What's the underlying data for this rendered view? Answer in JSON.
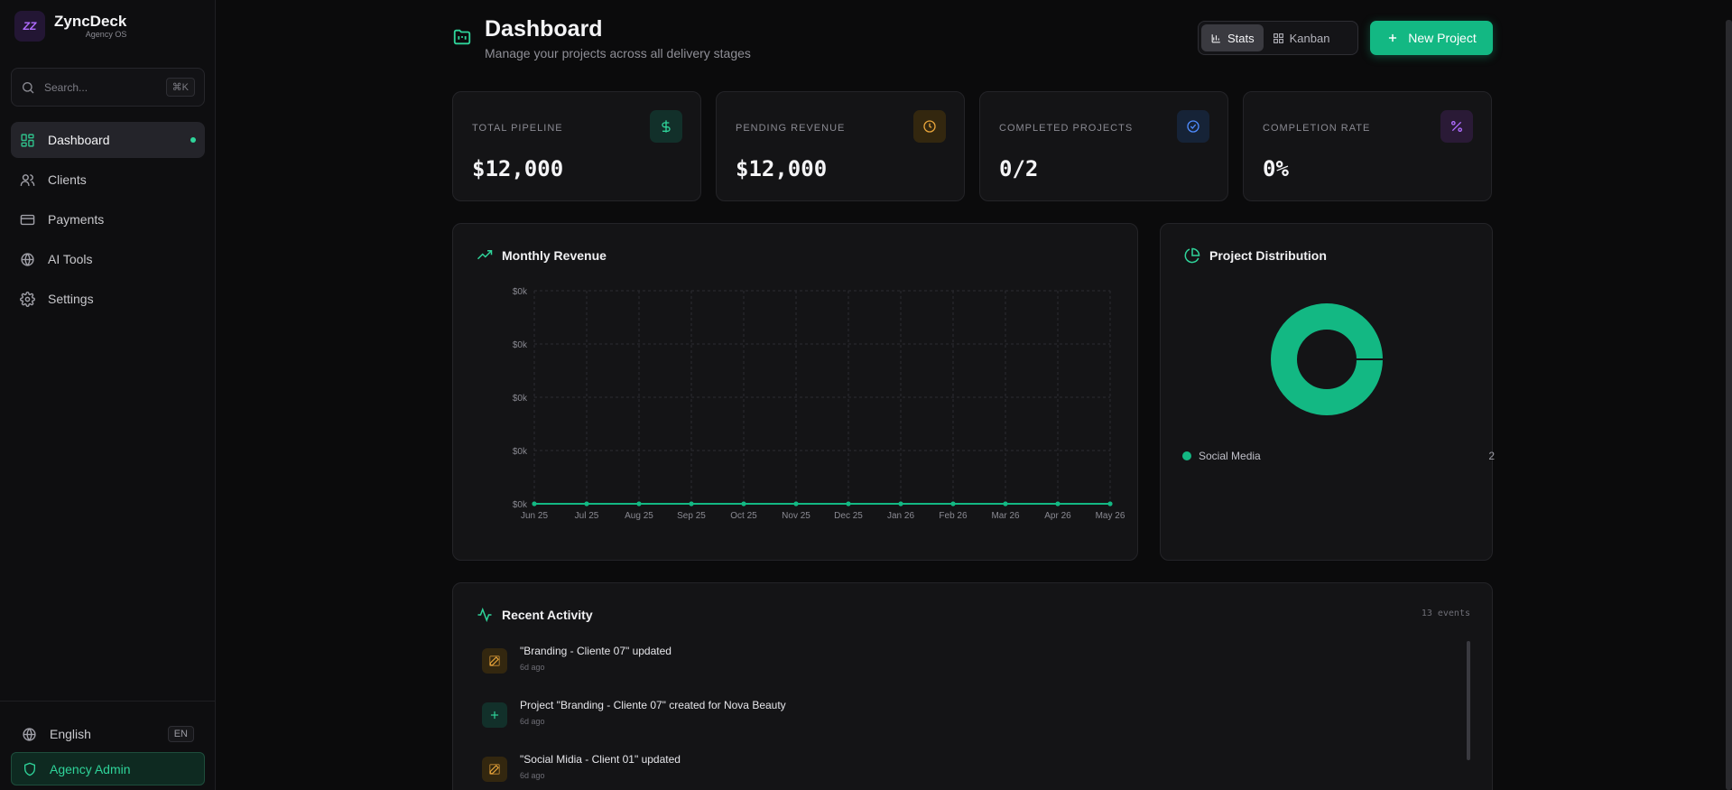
{
  "brand": {
    "name": "ZyncDeck",
    "subtitle": "Agency OS",
    "logo_text": "ZZ"
  },
  "search": {
    "placeholder": "Search...",
    "shortcut": "⌘K"
  },
  "nav": [
    {
      "label": "Dashboard",
      "icon": "dashboard-icon",
      "active": true
    },
    {
      "label": "Clients",
      "icon": "users-icon"
    },
    {
      "label": "Payments",
      "icon": "credit-card-icon"
    },
    {
      "label": "AI Tools",
      "icon": "globe-icon"
    },
    {
      "label": "Settings",
      "icon": "gear-icon"
    }
  ],
  "footer": {
    "language": "English",
    "language_code": "EN",
    "role": "Agency Admin"
  },
  "header": {
    "title": "Dashboard",
    "subtitle": "Manage your projects across all delivery stages"
  },
  "view_toggle": {
    "stats": "Stats",
    "kanban": "Kanban",
    "selected": "Stats"
  },
  "new_project": "New Project",
  "stats": [
    {
      "label": "TOTAL PIPELINE",
      "value": "$12,000",
      "icon": "dollar-icon",
      "color": "#2fd49a"
    },
    {
      "label": "PENDING REVENUE",
      "value": "$12,000",
      "icon": "clock-icon",
      "color": "#e7a43a"
    },
    {
      "label": "COMPLETED PROJECTS",
      "value": "0/2",
      "icon": "check-circle-icon",
      "color": "#4f8cff"
    },
    {
      "label": "COMPLETION RATE",
      "value": "0%",
      "icon": "percent-icon",
      "color": "#b06cff"
    }
  ],
  "revenue": {
    "title": "Monthly Revenue",
    "chart_data": {
      "type": "line",
      "title": "Monthly Revenue",
      "categories": [
        "Jun 25",
        "Jul 25",
        "Aug 25",
        "Sep 25",
        "Oct 25",
        "Nov 25",
        "Dec 25",
        "Jan 26",
        "Feb 26",
        "Mar 26",
        "Apr 26",
        "May 26"
      ],
      "series": [
        {
          "values": [
            0,
            0,
            0,
            0,
            0,
            0,
            0,
            0,
            0,
            0,
            0,
            0
          ],
          "color": "#13b883"
        }
      ],
      "y_ticks": [
        "$0k",
        "$0k",
        "$0k",
        "$0k",
        "$0k"
      ],
      "grid": true
    }
  },
  "distribution": {
    "title": "Project Distribution",
    "chart_data": {
      "type": "pie",
      "donut": true,
      "slices": [
        {
          "label": "Social Media",
          "value": 2,
          "color": "#13b883"
        }
      ]
    },
    "legend": [
      {
        "label": "Social Media",
        "count": "2"
      }
    ]
  },
  "activity": {
    "title": "Recent Activity",
    "count": "13 events",
    "items": [
      {
        "text": "\"Branding - Cliente 07\" updated",
        "time": "6d ago",
        "icon": "edit-icon",
        "color": "#e7a43a"
      },
      {
        "text": "Project \"Branding - Cliente 07\" created for Nova Beauty",
        "time": "6d ago",
        "icon": "plus-icon",
        "color": "#2fd49a"
      },
      {
        "text": "\"Social Midia - Client 01\" updated",
        "time": "6d ago",
        "icon": "edit-icon",
        "color": "#e7a43a"
      }
    ]
  }
}
